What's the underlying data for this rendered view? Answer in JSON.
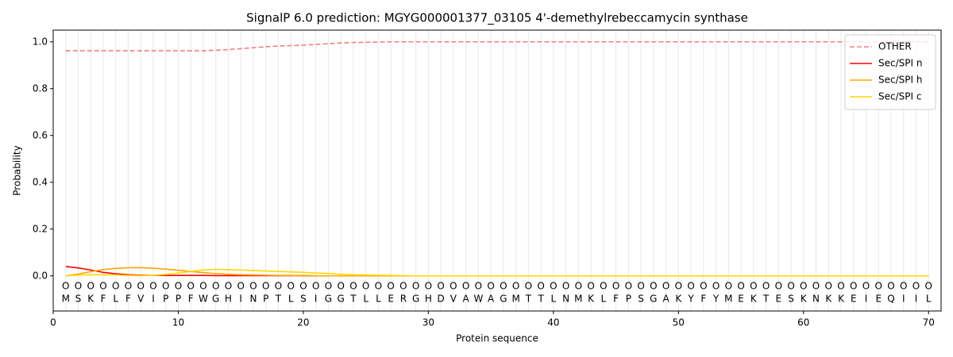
{
  "chart_data": {
    "type": "line",
    "title": "SignalP 6.0 prediction: MGYG000001377_03105 4'-demethylrebeccamycin synthase",
    "x_label": "Protein sequence",
    "y_label": "Probability",
    "x": [
      1,
      2,
      3,
      4,
      5,
      6,
      7,
      8,
      9,
      10,
      11,
      12,
      13,
      14,
      15,
      16,
      17,
      18,
      19,
      20,
      21,
      22,
      23,
      24,
      25,
      26,
      27,
      28,
      29,
      30,
      31,
      32,
      33,
      34,
      35,
      36,
      37,
      38,
      39,
      40,
      41,
      42,
      43,
      44,
      45,
      46,
      47,
      48,
      49,
      50,
      51,
      52,
      53,
      54,
      55,
      56,
      57,
      58,
      59,
      60,
      61,
      62,
      63,
      64,
      65,
      66,
      67,
      68,
      69,
      70
    ],
    "residues": [
      "M",
      "S",
      "K",
      "F",
      "L",
      "F",
      "V",
      "I",
      "P",
      "P",
      "F",
      "W",
      "G",
      "H",
      "I",
      "N",
      "P",
      "T",
      "L",
      "S",
      "I",
      "G",
      "G",
      "T",
      "L",
      "L",
      "E",
      "R",
      "G",
      "H",
      "D",
      "V",
      "A",
      "W",
      "A",
      "G",
      "M",
      "T",
      "T",
      "L",
      "N",
      "M",
      "K",
      "L",
      "F",
      "P",
      "S",
      "G",
      "A",
      "K",
      "Y",
      "F",
      "Y",
      "M",
      "E",
      "K",
      "T",
      "E",
      "S",
      "K",
      "N",
      "K",
      "K",
      "E",
      "I",
      "E",
      "Q",
      "I",
      "I",
      "L"
    ],
    "predictions": [
      "O",
      "O",
      "O",
      "O",
      "O",
      "O",
      "O",
      "O",
      "O",
      "O",
      "O",
      "O",
      "O",
      "O",
      "O",
      "O",
      "O",
      "O",
      "O",
      "O",
      "O",
      "O",
      "O",
      "O",
      "O",
      "O",
      "O",
      "O",
      "O",
      "O",
      "O",
      "O",
      "O",
      "O",
      "O",
      "O",
      "O",
      "O",
      "O",
      "O",
      "O",
      "O",
      "O",
      "O",
      "O",
      "O",
      "O",
      "O",
      "O",
      "O",
      "O",
      "O",
      "O",
      "O",
      "O",
      "O",
      "O",
      "O",
      "O",
      "O",
      "O",
      "O",
      "O",
      "O",
      "O",
      "O",
      "O",
      "O",
      "O",
      "O"
    ],
    "series": [
      {
        "name": "OTHER",
        "color": "#f08080",
        "linestyle": "dashed",
        "values": [
          0.962,
          0.962,
          0.962,
          0.962,
          0.962,
          0.962,
          0.962,
          0.962,
          0.962,
          0.962,
          0.962,
          0.962,
          0.964,
          0.967,
          0.971,
          0.975,
          0.979,
          0.982,
          0.984,
          0.986,
          0.989,
          0.992,
          0.995,
          0.997,
          0.998,
          0.999,
          1,
          1,
          1,
          1,
          1,
          1,
          1,
          1,
          1,
          1,
          1,
          1,
          1,
          1,
          1,
          1,
          1,
          1,
          1,
          1,
          1,
          1,
          1,
          1,
          1,
          1,
          1,
          1,
          1,
          1,
          1,
          1,
          1,
          1,
          1,
          1,
          1,
          1,
          1,
          1,
          1,
          1,
          1,
          1
        ]
      },
      {
        "name": "Sec/SPI n",
        "color": "#ff0000",
        "linestyle": "solid",
        "values": [
          0.04,
          0.034,
          0.025,
          0.015,
          0.009,
          0.005,
          0.003,
          0.002,
          0.002,
          0.002,
          0.002,
          0.002,
          0.001,
          0.001,
          0.001,
          0.001,
          0.001,
          0.001,
          0.001,
          0.001,
          0,
          0,
          0,
          0,
          0,
          0,
          0,
          0,
          0,
          0,
          0,
          0,
          0,
          0,
          0,
          0,
          0,
          0,
          0,
          0,
          0,
          0,
          0,
          0,
          0,
          0,
          0,
          0,
          0,
          0,
          0,
          0,
          0,
          0,
          0,
          0,
          0,
          0,
          0,
          0,
          0,
          0,
          0,
          0,
          0,
          0,
          0,
          0,
          0,
          0
        ]
      },
      {
        "name": "Sec/SPI h",
        "color": "#ffa500",
        "linestyle": "solid",
        "values": [
          0,
          0.008,
          0.018,
          0.027,
          0.032,
          0.035,
          0.035,
          0.033,
          0.029,
          0.024,
          0.019,
          0.014,
          0.01,
          0.007,
          0.005,
          0.004,
          0.003,
          0.002,
          0.002,
          0.001,
          0,
          0,
          0,
          0,
          0,
          0,
          0,
          0,
          0,
          0,
          0,
          0,
          0,
          0,
          0,
          0,
          0,
          0,
          0,
          0,
          0,
          0,
          0,
          0,
          0,
          0,
          0,
          0,
          0,
          0,
          0,
          0,
          0,
          0,
          0,
          0,
          0,
          0,
          0,
          0,
          0,
          0,
          0,
          0,
          0,
          0,
          0,
          0,
          0,
          0
        ]
      },
      {
        "name": "Sec/SPI c",
        "color": "#ffd700",
        "linestyle": "solid",
        "values": [
          0,
          0.003,
          0.005,
          0.005,
          0.004,
          0.002,
          0.001,
          0.002,
          0.006,
          0.012,
          0.019,
          0.025,
          0.028,
          0.027,
          0.025,
          0.023,
          0.021,
          0.019,
          0.017,
          0.015,
          0.012,
          0.01,
          0.007,
          0.005,
          0.004,
          0.003,
          0.002,
          0.001,
          0,
          0,
          0,
          0,
          0,
          0,
          0,
          0,
          0,
          0,
          0,
          0,
          0,
          0,
          0,
          0,
          0,
          0,
          0,
          0,
          0,
          0,
          0,
          0,
          0,
          0,
          0,
          0,
          0,
          0,
          0,
          0,
          0,
          0,
          0,
          0,
          0,
          0,
          0,
          0,
          0,
          0
        ]
      }
    ],
    "xlim": [
      0,
      71
    ],
    "ylim": [
      -0.15,
      1.05
    ],
    "xticks": [
      0,
      10,
      20,
      30,
      40,
      50,
      60,
      70
    ],
    "yticks": [
      {
        "value": 0,
        "label": "0.0"
      },
      {
        "value": 0.2,
        "label": "0.2"
      },
      {
        "value": 0.4,
        "label": "0.4"
      },
      {
        "value": 0.6,
        "label": "0.6"
      },
      {
        "value": 0.8,
        "label": "0.8"
      },
      {
        "value": 1,
        "label": "1.0"
      }
    ],
    "legend": "upper right"
  }
}
